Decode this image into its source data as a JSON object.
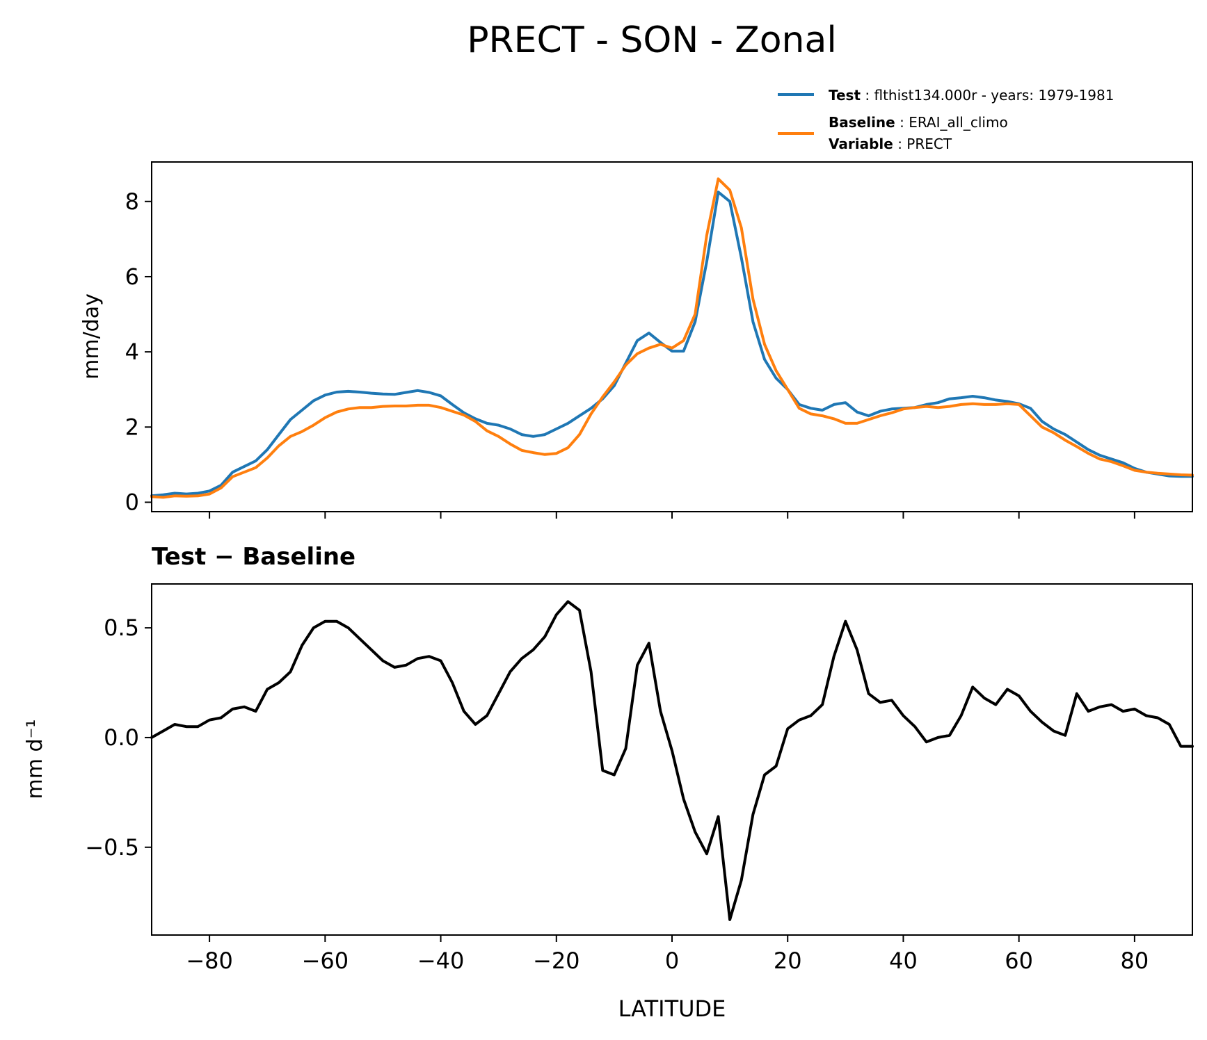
{
  "title": "PRECT - SON - Zonal",
  "colors": {
    "test": "#1f77b4",
    "baseline": "#ff7f0e",
    "diff": "#000000",
    "axes": "#000000"
  },
  "legend": {
    "placement": "above-top-right",
    "test": {
      "key": "Test",
      "text": ": flthist134.000r - years: 1979-1981"
    },
    "baseline": {
      "key": "Baseline",
      "text": ": ERAI_all_climo"
    },
    "variable": {
      "key": "Variable",
      "text": ": PRECT"
    }
  },
  "chart_data": [
    {
      "type": "line",
      "title": "",
      "xlabel": "",
      "ylabel": "mm/day",
      "xlim": [
        -90,
        90
      ],
      "ylim": [
        -0.25,
        9.05
      ],
      "xticks": [
        -80,
        -60,
        -40,
        -20,
        0,
        20,
        40,
        60,
        80
      ],
      "yticks": [
        0,
        2,
        4,
        6,
        8
      ],
      "ytick_labels": [
        "0",
        "2",
        "4",
        "6",
        "8"
      ],
      "x": [
        -90,
        -88,
        -86,
        -84,
        -82,
        -80,
        -78,
        -76,
        -74,
        -72,
        -70,
        -68,
        -66,
        -64,
        -62,
        -60,
        -58,
        -56,
        -54,
        -52,
        -50,
        -48,
        -46,
        -44,
        -42,
        -40,
        -38,
        -36,
        -34,
        -32,
        -30,
        -28,
        -26,
        -24,
        -22,
        -20,
        -18,
        -16,
        -14,
        -12,
        -10,
        -8,
        -6,
        -4,
        -2,
        0,
        2,
        4,
        6,
        8,
        10,
        12,
        14,
        16,
        18,
        20,
        22,
        24,
        26,
        28,
        30,
        32,
        34,
        36,
        38,
        40,
        42,
        44,
        46,
        48,
        50,
        52,
        54,
        56,
        58,
        60,
        62,
        64,
        66,
        68,
        70,
        72,
        74,
        76,
        78,
        80,
        82,
        84,
        86,
        88,
        90
      ],
      "series": [
        {
          "name": "Test",
          "color": "#1f77b4",
          "values": [
            0.17,
            0.2,
            0.24,
            0.22,
            0.24,
            0.3,
            0.45,
            0.8,
            0.95,
            1.1,
            1.4,
            1.8,
            2.2,
            2.45,
            2.7,
            2.85,
            2.93,
            2.95,
            2.93,
            2.9,
            2.88,
            2.87,
            2.92,
            2.97,
            2.92,
            2.83,
            2.6,
            2.38,
            2.22,
            2.1,
            2.05,
            1.95,
            1.8,
            1.75,
            1.8,
            1.95,
            2.1,
            2.3,
            2.5,
            2.75,
            3.1,
            3.7,
            4.3,
            4.5,
            4.25,
            4.02,
            4.02,
            4.8,
            6.4,
            8.25,
            8.0,
            6.5,
            4.8,
            3.8,
            3.3,
            3.0,
            2.6,
            2.5,
            2.45,
            2.6,
            2.65,
            2.4,
            2.3,
            2.42,
            2.48,
            2.5,
            2.52,
            2.6,
            2.65,
            2.75,
            2.78,
            2.82,
            2.78,
            2.72,
            2.68,
            2.62,
            2.5,
            2.15,
            1.95,
            1.8,
            1.6,
            1.4,
            1.25,
            1.15,
            1.05,
            0.9,
            0.8,
            0.75,
            0.7,
            0.69,
            0.69
          ]
        },
        {
          "name": "Baseline",
          "color": "#ff7f0e",
          "values": [
            0.15,
            0.13,
            0.17,
            0.16,
            0.17,
            0.22,
            0.38,
            0.68,
            0.8,
            0.92,
            1.18,
            1.5,
            1.75,
            1.88,
            2.05,
            2.25,
            2.4,
            2.48,
            2.52,
            2.52,
            2.55,
            2.56,
            2.56,
            2.58,
            2.58,
            2.52,
            2.42,
            2.32,
            2.15,
            1.9,
            1.75,
            1.55,
            1.38,
            1.32,
            1.27,
            1.3,
            1.45,
            1.8,
            2.35,
            2.8,
            3.2,
            3.65,
            3.95,
            4.1,
            4.2,
            4.1,
            4.3,
            5.0,
            7.1,
            8.6,
            8.3,
            7.3,
            5.4,
            4.2,
            3.5,
            3.0,
            2.5,
            2.35,
            2.3,
            2.22,
            2.1,
            2.1,
            2.2,
            2.3,
            2.38,
            2.48,
            2.52,
            2.55,
            2.52,
            2.55,
            2.6,
            2.62,
            2.6,
            2.6,
            2.62,
            2.6,
            2.3,
            2.0,
            1.85,
            1.65,
            1.48,
            1.3,
            1.15,
            1.08,
            0.97,
            0.85,
            0.8,
            0.77,
            0.75,
            0.73,
            0.72
          ]
        }
      ]
    },
    {
      "type": "line",
      "title": "Test − Baseline",
      "xlabel": "LATITUDE",
      "ylabel": "mm d⁻¹",
      "xlim": [
        -90,
        90
      ],
      "ylim": [
        -0.9,
        0.7
      ],
      "xticks": [
        -80,
        -60,
        -40,
        -20,
        0,
        20,
        40,
        60,
        80
      ],
      "xtick_labels": [
        "−80",
        "−60",
        "−40",
        "−20",
        "0",
        "20",
        "40",
        "60",
        "80"
      ],
      "yticks": [
        -0.5,
        0.0,
        0.5
      ],
      "ytick_labels": [
        "−0.5",
        "0.0",
        "0.5"
      ],
      "x": [
        -90,
        -88,
        -86,
        -84,
        -82,
        -80,
        -78,
        -76,
        -74,
        -72,
        -70,
        -68,
        -66,
        -64,
        -62,
        -60,
        -58,
        -56,
        -54,
        -52,
        -50,
        -48,
        -46,
        -44,
        -42,
        -40,
        -38,
        -36,
        -34,
        -32,
        -30,
        -28,
        -26,
        -24,
        -22,
        -20,
        -18,
        -16,
        -14,
        -12,
        -10,
        -8,
        -6,
        -4,
        -2,
        0,
        2,
        4,
        6,
        8,
        10,
        12,
        14,
        16,
        18,
        20,
        22,
        24,
        26,
        28,
        30,
        32,
        34,
        36,
        38,
        40,
        42,
        44,
        46,
        48,
        50,
        52,
        54,
        56,
        58,
        60,
        62,
        64,
        66,
        68,
        70,
        72,
        74,
        76,
        78,
        80,
        82,
        84,
        86,
        88,
        90
      ],
      "series": [
        {
          "name": "Test − Baseline",
          "color": "#000000",
          "values": [
            0.0,
            0.03,
            0.06,
            0.05,
            0.05,
            0.08,
            0.09,
            0.13,
            0.14,
            0.12,
            0.22,
            0.25,
            0.3,
            0.42,
            0.5,
            0.53,
            0.53,
            0.5,
            0.45,
            0.4,
            0.35,
            0.32,
            0.33,
            0.36,
            0.37,
            0.35,
            0.25,
            0.12,
            0.06,
            0.1,
            0.2,
            0.3,
            0.36,
            0.4,
            0.46,
            0.56,
            0.62,
            0.58,
            0.3,
            -0.15,
            -0.17,
            -0.05,
            0.33,
            0.43,
            0.12,
            -0.06,
            -0.28,
            -0.43,
            -0.53,
            -0.36,
            -0.83,
            -0.65,
            -0.35,
            -0.17,
            -0.13,
            0.04,
            0.08,
            0.1,
            0.15,
            0.37,
            0.53,
            0.4,
            0.2,
            0.16,
            0.17,
            0.1,
            0.05,
            -0.02,
            0.0,
            0.01,
            0.1,
            0.23,
            0.18,
            0.15,
            0.22,
            0.19,
            0.12,
            0.07,
            0.03,
            0.01,
            0.2,
            0.12,
            0.14,
            0.15,
            0.12,
            0.13,
            0.1,
            0.09,
            0.06,
            -0.04,
            -0.04
          ]
        }
      ]
    }
  ]
}
